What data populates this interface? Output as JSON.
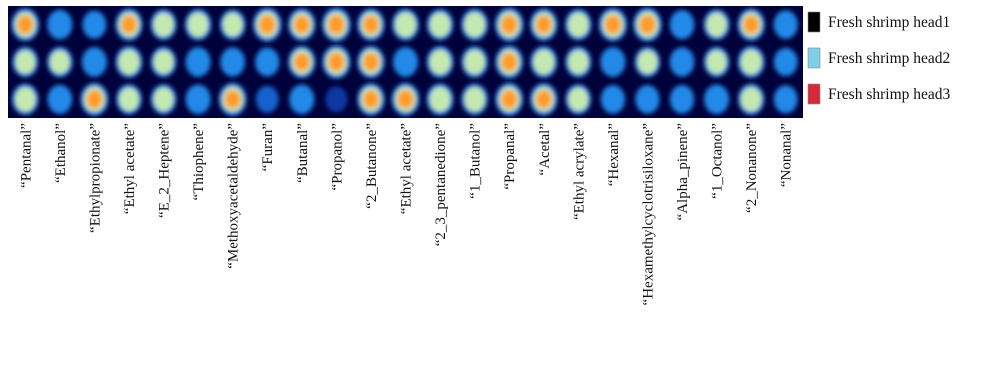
{
  "chart_data": {
    "type": "heatmap",
    "rows": [
      "Fresh shrimp head1",
      "Fresh shrimp head2",
      "Fresh shrimp head3"
    ],
    "columns": [
      "“Pentanal”",
      "“Ethanol”",
      "“Ethylpropionate”",
      "“Ethyl acetate”",
      "“E_2_Heptene”",
      "“Thiophene”",
      "“Methoxyacetaldehyde”",
      "“Furan”",
      "“Butanal”",
      "“Propanol”",
      "“2_Butanone”",
      "“Ethyl acetate”",
      "“2_3_pentanedione”",
      "“1_Butanol”",
      "“Propanal”",
      "“Acetal”",
      "“Ethyl acrylate”",
      "“Hexanal”",
      "“Hexamethylcyclotrisiloxane”",
      "“Alpha_pinene”",
      "“1_Octanol”",
      "“2_Nonanone”",
      "“Nonanal”"
    ],
    "values": [
      [
        0.85,
        0.55,
        0.4,
        0.8,
        0.65,
        0.7,
        0.6,
        0.95,
        0.8,
        0.95,
        0.8,
        0.75,
        0.7,
        0.75,
        0.95,
        0.8,
        0.7,
        0.9,
        0.95,
        0.5,
        0.65,
        0.8,
        0.45
      ],
      [
        0.6,
        0.6,
        0.55,
        0.75,
        0.6,
        0.55,
        0.5,
        0.45,
        0.8,
        0.9,
        0.8,
        0.55,
        0.75,
        0.7,
        0.85,
        0.75,
        0.65,
        0.55,
        0.6,
        0.5,
        0.6,
        0.75,
        0.4
      ],
      [
        0.7,
        0.5,
        0.85,
        0.6,
        0.6,
        0.55,
        0.85,
        0.3,
        0.55,
        0.2,
        0.8,
        0.85,
        0.75,
        0.7,
        0.85,
        0.8,
        0.6,
        0.45,
        0.45,
        0.45,
        0.55,
        0.7,
        0.4
      ]
    ],
    "legend": [
      {
        "label": "Fresh shrimp head1",
        "color": "#000000"
      },
      {
        "label": "Fresh shrimp head2",
        "color": "#7fd0e6"
      },
      {
        "label": "Fresh shrimp head3",
        "color": "#d62a3a"
      }
    ],
    "colormap": [
      "#00003a",
      "#0a3db0",
      "#2fa8ff",
      "#8ef0ff",
      "#ffe25a",
      "#ff7a10",
      "#d81a10"
    ],
    "legend_position": "right"
  }
}
